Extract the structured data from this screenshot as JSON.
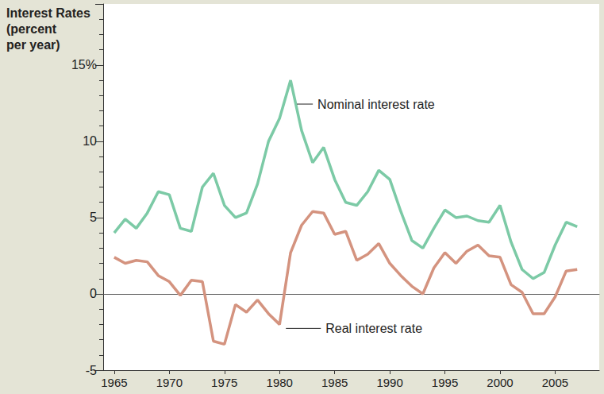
{
  "chart_data": {
    "type": "line",
    "ylabel": "Interest Rates\n(percent\nper year)",
    "x": [
      1965,
      1966,
      1967,
      1968,
      1969,
      1970,
      1971,
      1972,
      1973,
      1974,
      1975,
      1976,
      1977,
      1978,
      1979,
      1980,
      1981,
      1982,
      1983,
      1984,
      1985,
      1986,
      1987,
      1988,
      1989,
      1990,
      1991,
      1992,
      1993,
      1994,
      1995,
      1996,
      1997,
      1998,
      1999,
      2000,
      2001,
      2002,
      2003,
      2004,
      2005,
      2006,
      2007
    ],
    "series": [
      {
        "name": "Nominal interest rate",
        "color": "#7ccaa6",
        "values": [
          4.0,
          4.9,
          4.3,
          5.3,
          6.7,
          6.5,
          4.3,
          4.1,
          7.0,
          7.9,
          5.8,
          5.0,
          5.3,
          7.2,
          10.0,
          11.5,
          14.0,
          10.7,
          8.6,
          9.6,
          7.5,
          6.0,
          5.8,
          6.7,
          8.1,
          7.5,
          5.4,
          3.5,
          3.0,
          4.3,
          5.5,
          5.0,
          5.1,
          4.8,
          4.7,
          5.8,
          3.4,
          1.6,
          1.0,
          1.4,
          3.2,
          4.7,
          4.4
        ]
      },
      {
        "name": "Real interest rate",
        "color": "#d4937f",
        "values": [
          2.4,
          2.0,
          2.2,
          2.1,
          1.2,
          0.8,
          -0.1,
          0.9,
          0.8,
          -3.1,
          -3.3,
          -0.7,
          -1.2,
          -0.4,
          -1.3,
          -2.0,
          2.7,
          4.5,
          5.4,
          5.3,
          3.9,
          4.1,
          2.2,
          2.6,
          3.3,
          2.0,
          1.2,
          0.5,
          0.0,
          1.7,
          2.7,
          2.0,
          2.8,
          3.2,
          2.5,
          2.4,
          0.6,
          0.1,
          -1.3,
          -1.3,
          -0.2,
          1.5,
          1.6
        ]
      }
    ],
    "xlim": [
      1964,
      2009
    ],
    "xticks": [
      1965,
      1970,
      1975,
      1980,
      1985,
      1990,
      1995,
      2000,
      2005
    ],
    "ylim": [
      -5,
      19
    ],
    "yticks": [
      -5,
      0,
      5,
      10,
      {
        "value": 15,
        "label": "15%"
      }
    ],
    "grid": false
  }
}
